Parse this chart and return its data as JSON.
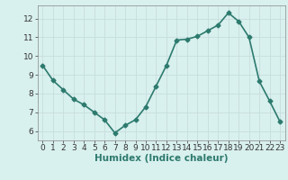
{
  "x": [
    0,
    1,
    2,
    3,
    4,
    5,
    6,
    7,
    8,
    9,
    10,
    11,
    12,
    13,
    14,
    15,
    16,
    17,
    18,
    19,
    20,
    21,
    22,
    23
  ],
  "y": [
    9.5,
    8.7,
    8.2,
    7.7,
    7.4,
    7.0,
    6.6,
    5.9,
    6.3,
    6.6,
    7.3,
    8.4,
    9.5,
    10.85,
    10.9,
    11.05,
    11.35,
    11.65,
    12.3,
    11.85,
    11.0,
    8.65,
    7.6,
    6.5
  ],
  "line_color": "#2d7a6e",
  "marker": "D",
  "marker_size": 2.5,
  "bg_color": "#d8f0ee",
  "grid_color": "#c8dede",
  "xlabel": "Humidex (Indice chaleur)",
  "ylim": [
    5.5,
    12.7
  ],
  "yticks": [
    6,
    7,
    8,
    9,
    10,
    11,
    12
  ],
  "xlim": [
    -0.5,
    23.5
  ],
  "xticks": [
    0,
    1,
    2,
    3,
    4,
    5,
    6,
    7,
    8,
    9,
    10,
    11,
    12,
    13,
    14,
    15,
    16,
    17,
    18,
    19,
    20,
    21,
    22,
    23
  ],
  "xlabel_fontsize": 7.5,
  "tick_fontsize": 6.5,
  "line_width": 1.2
}
